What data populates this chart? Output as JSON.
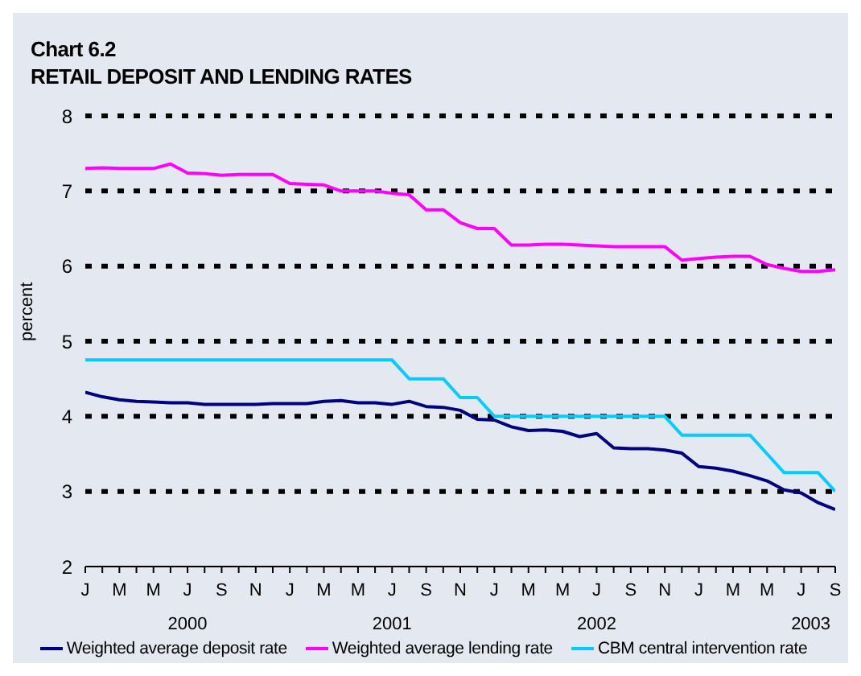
{
  "chart_data": {
    "type": "line",
    "title": "Chart 6.2",
    "subtitle": "RETAIL DEPOSIT AND LENDING RATES",
    "ylabel": "percent",
    "categories": [
      "J",
      null,
      "M",
      null,
      "M",
      null,
      "J",
      null,
      "S",
      null,
      "N",
      null,
      "J",
      null,
      "M",
      null,
      "M",
      null,
      "J",
      null,
      "S",
      null,
      "N",
      null,
      "J",
      null,
      "M",
      null,
      "M",
      null,
      "J",
      null,
      "S",
      null,
      "N",
      null,
      "J",
      null,
      "M",
      null,
      "M",
      null,
      "J",
      null,
      "S"
    ],
    "annotations": [
      "2000",
      "2001",
      "2002",
      "2003"
    ],
    "series": [
      {
        "name": "Weighted average deposit rate",
        "color": "#000080",
        "values": [
          4.32,
          4.26,
          4.22,
          4.2,
          4.19,
          4.18,
          4.18,
          4.16,
          4.16,
          4.16,
          4.16,
          4.17,
          4.17,
          4.17,
          4.2,
          4.21,
          4.18,
          4.18,
          4.16,
          4.2,
          4.13,
          4.12,
          4.08,
          3.96,
          3.95,
          3.86,
          3.81,
          3.82,
          3.8,
          3.73,
          3.77,
          3.58,
          3.57,
          3.57,
          3.55,
          3.51,
          3.33,
          3.31,
          3.27,
          3.21,
          3.14,
          3.02,
          2.98,
          2.85,
          2.76
        ]
      },
      {
        "name": "Weighted average lending rate",
        "color": "#ff00ff",
        "values": [
          7.3,
          7.31,
          7.3,
          7.3,
          7.3,
          7.36,
          7.24,
          7.23,
          7.21,
          7.22,
          7.22,
          7.22,
          7.1,
          7.09,
          7.08,
          7.0,
          7.0,
          7.0,
          6.97,
          6.95,
          6.75,
          6.75,
          6.58,
          6.5,
          6.5,
          6.28,
          6.28,
          6.29,
          6.29,
          6.28,
          6.27,
          6.26,
          6.26,
          6.26,
          6.26,
          6.08,
          6.1,
          6.12,
          6.13,
          6.13,
          6.02,
          5.97,
          5.93,
          5.93,
          5.95
        ]
      },
      {
        "name": "CBM central intervention rate",
        "color": "#00ccff",
        "values": [
          4.75,
          4.75,
          4.75,
          4.75,
          4.75,
          4.75,
          4.75,
          4.75,
          4.75,
          4.75,
          4.75,
          4.75,
          4.75,
          4.75,
          4.75,
          4.75,
          4.75,
          4.75,
          4.75,
          4.5,
          4.5,
          4.5,
          4.25,
          4.25,
          4.0,
          4.0,
          4.0,
          4.0,
          4.0,
          4.0,
          4.0,
          4.0,
          4.0,
          4.0,
          4.0,
          3.75,
          3.75,
          3.75,
          3.75,
          3.75,
          3.5,
          3.25,
          3.25,
          3.25,
          3.0
        ]
      }
    ],
    "ylim": [
      2,
      8
    ],
    "yticks": [
      2,
      3,
      4,
      5,
      6,
      7,
      8
    ],
    "grid": "y",
    "legend": "bottom",
    "marker": "none",
    "line_style": "solid"
  }
}
